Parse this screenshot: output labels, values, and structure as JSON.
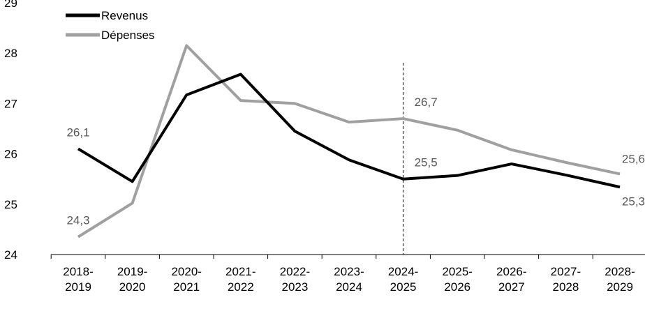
{
  "chart_data": {
    "type": "line",
    "title": "",
    "xlabel": "",
    "ylabel": "",
    "ylim": [
      24,
      29
    ],
    "yticks": [
      "24",
      "25",
      "26",
      "27",
      "28",
      "29"
    ],
    "categories": [
      [
        "2018-",
        "2019"
      ],
      [
        "2019-",
        "2020"
      ],
      [
        "2020-",
        "2021"
      ],
      [
        "2021-",
        "2022"
      ],
      [
        "2022-",
        "2023"
      ],
      [
        "2023-",
        "2024"
      ],
      [
        "2024-",
        "2025"
      ],
      [
        "2025-",
        "2026"
      ],
      [
        "2026-",
        "2027"
      ],
      [
        "2027-",
        "2028"
      ],
      [
        "2028-",
        "2029"
      ]
    ],
    "series": [
      {
        "name": "Revenus",
        "color": "#000000",
        "values": [
          26.1,
          25.45,
          27.17,
          27.58,
          26.45,
          25.88,
          25.5,
          25.57,
          25.8,
          25.58,
          25.34
        ]
      },
      {
        "name": "Dépenses",
        "color": "#a0a0a0",
        "values": [
          24.35,
          25.02,
          28.15,
          27.06,
          27.0,
          26.63,
          26.7,
          26.47,
          26.08,
          25.83,
          25.6
        ]
      }
    ],
    "data_labels": [
      {
        "series": 0,
        "index": 0,
        "text": "26,1"
      },
      {
        "series": 1,
        "index": 0,
        "text": "24,3"
      },
      {
        "series": 1,
        "index": 6,
        "text": "26,7"
      },
      {
        "series": 0,
        "index": 6,
        "text": "25,5"
      },
      {
        "series": 1,
        "index": 10,
        "text": "25,6"
      },
      {
        "series": 0,
        "index": 10,
        "text": "25,3"
      }
    ],
    "reference_line_index": 6,
    "legend_position": "top-left",
    "grid": false
  }
}
